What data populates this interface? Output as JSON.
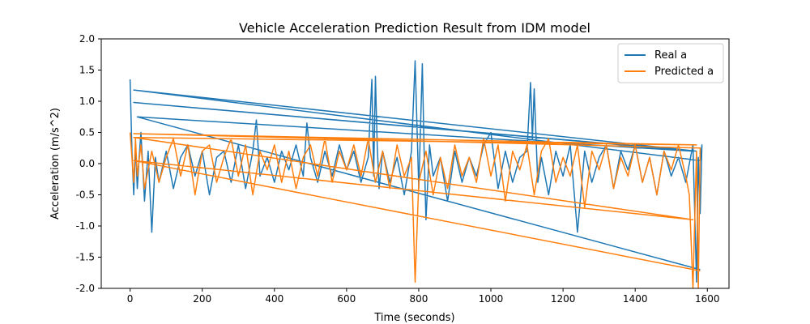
{
  "chart_data": {
    "type": "line",
    "title": "Vehicle Acceleration Prediction Result from IDM model",
    "xlabel": "Time (seconds)",
    "ylabel": "Acceleration (m/s^2)",
    "xlim": [
      -80,
      1660
    ],
    "ylim": [
      -2.0,
      2.0
    ],
    "xticks": [
      0,
      200,
      400,
      600,
      800,
      1000,
      1200,
      1400,
      1600
    ],
    "yticks": [
      -2.0,
      -1.5,
      -1.0,
      -0.5,
      0.0,
      0.5,
      1.0,
      1.5,
      2.0
    ],
    "grid": false,
    "legend_position": "top-right",
    "series": [
      {
        "name": "Real a",
        "color": "#1f77b4",
        "x": [
          0,
          5,
          10,
          15,
          20,
          25,
          30,
          40,
          50,
          60,
          70,
          80,
          100,
          120,
          140,
          160,
          180,
          200,
          220,
          240,
          260,
          280,
          300,
          320,
          340,
          350,
          360,
          380,
          400,
          420,
          440,
          460,
          480,
          490,
          500,
          520,
          540,
          560,
          580,
          600,
          620,
          640,
          660,
          670,
          675,
          680,
          685,
          690,
          700,
          720,
          740,
          760,
          780,
          790,
          800,
          810,
          815,
          820,
          830,
          840,
          860,
          880,
          900,
          920,
          940,
          960,
          980,
          1000,
          1020,
          1040,
          1060,
          1080,
          1100,
          1110,
          1115,
          1120,
          1130,
          1140,
          1160,
          1180,
          1200,
          1220,
          1240,
          1260,
          1280,
          1300,
          1320,
          1340,
          1360,
          1380,
          1400,
          1420,
          1440,
          1460,
          1480,
          1500,
          1520,
          1540,
          1560,
          1570,
          1575,
          1580,
          1585,
          1580,
          10,
          1570,
          10,
          1560,
          20,
          1580
        ],
        "y": [
          1.35,
          0.2,
          -0.5,
          0.3,
          -0.4,
          0.1,
          0.5,
          -0.6,
          0.2,
          -1.1,
          0.1,
          -0.3,
          0.2,
          -0.4,
          0.1,
          0.3,
          -0.2,
          0.2,
          -0.5,
          0.1,
          0.2,
          -0.3,
          0.3,
          -0.4,
          0.2,
          0.7,
          -0.2,
          0.1,
          -0.3,
          0.2,
          -0.1,
          0.3,
          -0.2,
          0.65,
          0.1,
          -0.3,
          0.2,
          -0.2,
          0.3,
          -0.1,
          0.2,
          -0.3,
          0.1,
          1.35,
          -0.2,
          1.4,
          0.3,
          -0.4,
          0.2,
          -0.3,
          0.1,
          -0.5,
          0.2,
          1.65,
          -0.4,
          1.6,
          0.2,
          -0.9,
          0.3,
          -0.2,
          0.1,
          -0.6,
          0.2,
          -0.3,
          0.1,
          -0.2,
          0.3,
          0.5,
          -0.4,
          0.2,
          -0.3,
          0.1,
          0.2,
          1.3,
          0.4,
          1.2,
          -0.3,
          0.1,
          -0.5,
          0.2,
          -0.2,
          0.3,
          -1.1,
          0.2,
          -0.3,
          0.1,
          0.3,
          -0.4,
          0.2,
          -0.1,
          0.3,
          -0.3,
          0.1,
          -0.5,
          0.2,
          -0.2,
          0.1,
          -0.3,
          0.3,
          -1.9,
          0.1,
          -0.8,
          0.3,
          0.05,
          1.18,
          0.2,
          0.98,
          0.2,
          0.75,
          -1.7
        ]
      },
      {
        "name": "Predicted a",
        "color": "#ff7f0e",
        "x": [
          0,
          5,
          10,
          15,
          20,
          30,
          40,
          60,
          80,
          100,
          120,
          140,
          160,
          180,
          200,
          220,
          240,
          260,
          280,
          300,
          320,
          340,
          360,
          380,
          400,
          420,
          440,
          460,
          480,
          500,
          520,
          540,
          560,
          580,
          600,
          620,
          640,
          660,
          680,
          700,
          720,
          740,
          760,
          780,
          790,
          800,
          820,
          840,
          860,
          880,
          900,
          920,
          940,
          960,
          980,
          1000,
          1020,
          1040,
          1060,
          1080,
          1100,
          1120,
          1140,
          1160,
          1180,
          1200,
          1220,
          1240,
          1260,
          1280,
          1300,
          1320,
          1340,
          1360,
          1380,
          1400,
          1420,
          1440,
          1460,
          1480,
          1500,
          1520,
          1540,
          1550,
          1560,
          1570,
          1575,
          1580,
          10,
          1570,
          10,
          1560,
          10,
          1580
        ],
        "y": [
          0.5,
          0.1,
          -0.3,
          0.4,
          -0.2,
          0.3,
          -0.4,
          0.2,
          -0.3,
          0.1,
          0.4,
          -0.2,
          0.3,
          -0.5,
          0.2,
          0.3,
          -0.3,
          0.1,
          0.4,
          -0.2,
          0.3,
          -0.5,
          0.2,
          -0.1,
          0.3,
          -0.3,
          0.2,
          -0.4,
          0.1,
          0.3,
          -0.2,
          0.4,
          -0.3,
          0.2,
          -0.1,
          0.3,
          -0.2,
          0.4,
          -0.3,
          0.2,
          -0.4,
          0.3,
          -0.2,
          0.1,
          -1.9,
          -0.3,
          0.2,
          -0.5,
          0.1,
          -0.4,
          0.3,
          -0.2,
          0.1,
          -0.3,
          0.4,
          -0.2,
          0.3,
          -0.6,
          0.2,
          -0.1,
          0.3,
          -0.5,
          0.2,
          0.4,
          -0.3,
          0.1,
          -0.2,
          0.3,
          -0.7,
          0.2,
          -0.1,
          0.3,
          -0.4,
          0.1,
          -0.2,
          0.3,
          -0.3,
          0.1,
          -0.5,
          0.2,
          -0.1,
          0.3,
          -0.2,
          -0.5,
          -2.0,
          0.2,
          -2.0,
          0.25,
          0.48,
          0.3,
          0.42,
          -0.9,
          0.05,
          -1.72
        ]
      }
    ]
  }
}
